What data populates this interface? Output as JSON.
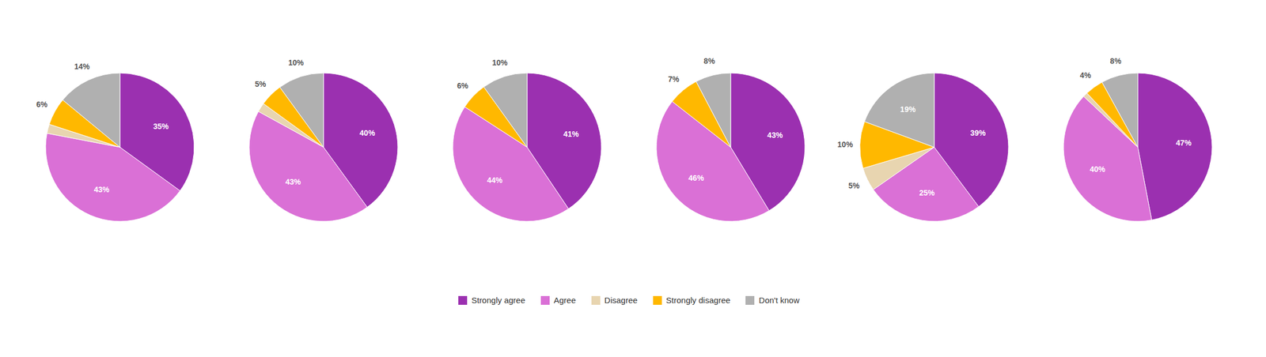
{
  "chart_data": [
    {
      "type": "pie",
      "categories": [
        "Strongly agree",
        "Agree",
        "Disagree",
        "Strongly disagree",
        "Don't know"
      ],
      "values": [
        35,
        43,
        2,
        6,
        14
      ],
      "value_labels": [
        "35%",
        "43%",
        null,
        "6%",
        "14%"
      ],
      "colors": [
        "#9B30B0",
        "#DA70D6",
        "#E8D5B0",
        "#FFB800",
        "#B0B0B0"
      ],
      "legend": "bottom"
    },
    {
      "type": "pie",
      "categories": [
        "Strongly agree",
        "Agree",
        "Disagree",
        "Strongly disagree",
        "Don't know"
      ],
      "values": [
        40,
        43,
        2,
        5,
        10
      ],
      "value_labels": [
        "40%",
        "43%",
        null,
        "5%",
        "10%"
      ],
      "colors": [
        "#9B30B0",
        "#DA70D6",
        "#E8D5B0",
        "#FFB800",
        "#B0B0B0"
      ]
    },
    {
      "type": "pie",
      "categories": [
        "Strongly agree",
        "Agree",
        "Disagree",
        "Strongly disagree",
        "Don't know"
      ],
      "values": [
        41,
        44,
        0,
        6,
        10
      ],
      "value_labels": [
        "41%",
        "44%",
        null,
        "6%",
        "10%"
      ],
      "colors": [
        "#9B30B0",
        "#DA70D6",
        "#E8D5B0",
        "#FFB800",
        "#B0B0B0"
      ]
    },
    {
      "type": "pie",
      "categories": [
        "Strongly agree",
        "Agree",
        "Disagree",
        "Strongly disagree",
        "Don't know"
      ],
      "values": [
        43,
        46,
        0,
        7,
        8
      ],
      "value_labels": [
        "43%",
        "46%",
        null,
        "7%",
        "8%"
      ],
      "colors": [
        "#9B30B0",
        "#DA70D6",
        "#E8D5B0",
        "#FFB800",
        "#B0B0B0"
      ]
    },
    {
      "type": "pie",
      "categories": [
        "Strongly agree",
        "Agree",
        "Disagree",
        "Strongly disagree",
        "Don't know"
      ],
      "values": [
        39,
        25,
        5,
        10,
        19
      ],
      "value_labels": [
        "39%",
        "25%",
        "5%",
        "10%",
        "19%"
      ],
      "colors": [
        "#9B30B0",
        "#DA70D6",
        "#E8D5B0",
        "#FFB800",
        "#B0B0B0"
      ]
    },
    {
      "type": "pie",
      "categories": [
        "Strongly agree",
        "Agree",
        "Disagree",
        "Strongly disagree",
        "Don't know"
      ],
      "values": [
        47,
        40,
        1,
        4,
        8
      ],
      "value_labels": [
        "47%",
        "40%",
        null,
        "4%",
        "8%"
      ],
      "colors": [
        "#9B30B0",
        "#DA70D6",
        "#E8D5B0",
        "#FFB800",
        "#B0B0B0"
      ]
    }
  ]
}
